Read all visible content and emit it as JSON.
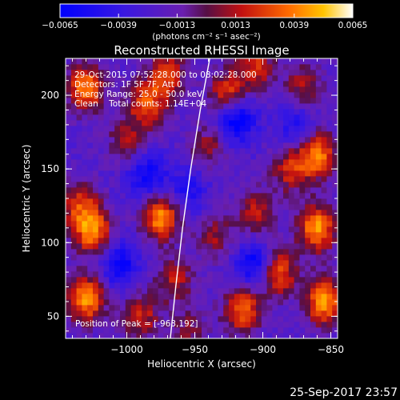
{
  "chart_data": {
    "type": "heatmap",
    "title": "Reconstructed RHESSI Image",
    "xlabel": "Heliocentric X (arcsec)",
    "ylabel": "Heliocentric Y (arcsec)",
    "xlim": [
      -1045,
      -845
    ],
    "ylim": [
      35,
      225
    ],
    "x_ticks": [
      -1000,
      -950,
      -900,
      -850
    ],
    "x_tick_labels": [
      "−1000",
      "−950",
      "−900",
      "−850"
    ],
    "y_ticks": [
      50,
      100,
      150,
      200
    ],
    "y_tick_labels": [
      "50",
      "100",
      "150",
      "200"
    ],
    "colorbar": {
      "min": -0.0065,
      "max": 0.0065,
      "ticks": [
        -0.0065,
        -0.0039,
        -0.0013,
        0.0013,
        0.0039,
        0.0065
      ],
      "tick_labels": [
        "−0.0065",
        "−0.0039",
        "−0.0013",
        "0.0013",
        "0.0039",
        "0.0065"
      ],
      "unit_label": "(photons cm⁻² s⁻¹ asec⁻²)"
    },
    "annotations": [
      "29-Oct-2015 07:52:28.000 to 08:02:28.000",
      "Detectors: 1F 5F 7F, Att 0",
      "Energy Range: 25.0 - 50.0 keV",
      "Clean    Total counts: 1.14E+04"
    ],
    "peak_label": "Position of Peak = [-963,192]",
    "limb_curve": [
      [
        -968,
        35
      ],
      [
        -964,
        70
      ],
      [
        -959,
        110
      ],
      [
        -953,
        150
      ],
      [
        -946,
        190
      ],
      [
        -939,
        225
      ]
    ],
    "blobs": [
      {
        "x": -1030,
        "y": 205,
        "v": 0.006
      },
      {
        "x": -985,
        "y": 195,
        "v": 0.005
      },
      {
        "x": -970,
        "y": 215,
        "v": 0.0045
      },
      {
        "x": -925,
        "y": 200,
        "v": 0.0055
      },
      {
        "x": -905,
        "y": 220,
        "v": 0.004
      },
      {
        "x": -870,
        "y": 205,
        "v": 0.0035
      },
      {
        "x": -860,
        "y": 160,
        "v": 0.006
      },
      {
        "x": -880,
        "y": 150,
        "v": 0.004
      },
      {
        "x": -940,
        "y": 165,
        "v": 0.003
      },
      {
        "x": -1000,
        "y": 170,
        "v": 0.003
      },
      {
        "x": -975,
        "y": 118,
        "v": 0.0065
      },
      {
        "x": -1025,
        "y": 108,
        "v": 0.006
      },
      {
        "x": -1035,
        "y": 125,
        "v": 0.004
      },
      {
        "x": -860,
        "y": 110,
        "v": 0.0065
      },
      {
        "x": -935,
        "y": 105,
        "v": 0.003
      },
      {
        "x": -905,
        "y": 120,
        "v": 0.0035
      },
      {
        "x": -1030,
        "y": 62,
        "v": 0.0065
      },
      {
        "x": -990,
        "y": 50,
        "v": 0.004
      },
      {
        "x": -965,
        "y": 75,
        "v": 0.0035
      },
      {
        "x": -915,
        "y": 55,
        "v": 0.0055
      },
      {
        "x": -890,
        "y": 80,
        "v": 0.006
      },
      {
        "x": -855,
        "y": 60,
        "v": 0.0065
      },
      {
        "x": -955,
        "y": 40,
        "v": 0.0025
      },
      {
        "x": -920,
        "y": 185,
        "v": -0.006
      },
      {
        "x": -985,
        "y": 145,
        "v": -0.004
      },
      {
        "x": -905,
        "y": 85,
        "v": -0.005
      },
      {
        "x": -1005,
        "y": 85,
        "v": -0.004
      },
      {
        "x": -955,
        "y": 135,
        "v": -0.003
      },
      {
        "x": -875,
        "y": 180,
        "v": -0.003
      }
    ]
  },
  "footer": {
    "date_stamp": "25-Sep-2017 23:57"
  }
}
